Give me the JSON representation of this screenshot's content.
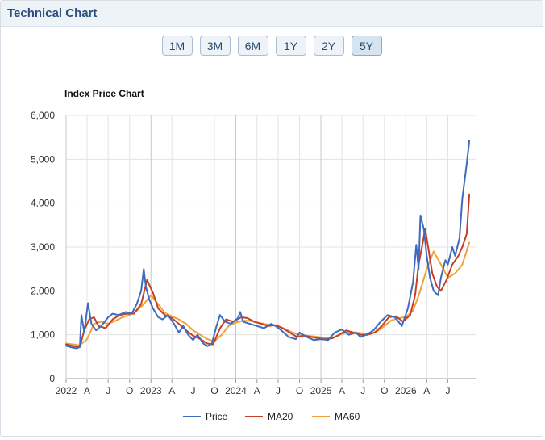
{
  "panel": {
    "title": "Technical Chart"
  },
  "range_buttons": [
    {
      "label": "1M",
      "active": false
    },
    {
      "label": "3M",
      "active": false
    },
    {
      "label": "6M",
      "active": false
    },
    {
      "label": "1Y",
      "active": false
    },
    {
      "label": "2Y",
      "active": false
    },
    {
      "label": "5Y",
      "active": true
    }
  ],
  "colors": {
    "price": "#3d6bbf",
    "ma20": "#c63f24",
    "ma60": "#f2a03a",
    "grid": "#e3e3e3",
    "grid_major": "#c8c8c8"
  },
  "chart_data": {
    "type": "line",
    "title": "Index Price Chart",
    "xlabel": "",
    "ylabel": "",
    "ylim": [
      0,
      6000
    ],
    "y_ticks": [
      {
        "value": 0,
        "label": "0"
      },
      {
        "value": 1000,
        "label": "1,000"
      },
      {
        "value": 2000,
        "label": "2,000"
      },
      {
        "value": 3000,
        "label": "3,000"
      },
      {
        "value": 4000,
        "label": "4,000"
      },
      {
        "value": 5000,
        "label": "5,000"
      },
      {
        "value": 6000,
        "label": "6,000"
      }
    ],
    "xlim": [
      "2022-01-01",
      "2026-11-01"
    ],
    "x_ticks": [
      {
        "date": "2022-01-01",
        "label": "2022",
        "major": true
      },
      {
        "date": "2022-04-01",
        "label": "A",
        "major": false
      },
      {
        "date": "2022-07-01",
        "label": "J",
        "major": false
      },
      {
        "date": "2022-10-01",
        "label": "O",
        "major": false
      },
      {
        "date": "2023-01-01",
        "label": "2023",
        "major": true
      },
      {
        "date": "2023-04-01",
        "label": "A",
        "major": false
      },
      {
        "date": "2023-07-01",
        "label": "J",
        "major": false
      },
      {
        "date": "2023-10-01",
        "label": "O",
        "major": false
      },
      {
        "date": "2024-01-01",
        "label": "2024",
        "major": true
      },
      {
        "date": "2024-04-01",
        "label": "A",
        "major": false
      },
      {
        "date": "2024-07-01",
        "label": "J",
        "major": false
      },
      {
        "date": "2024-10-01",
        "label": "O",
        "major": false
      },
      {
        "date": "2025-01-01",
        "label": "2025",
        "major": true
      },
      {
        "date": "2025-04-01",
        "label": "A",
        "major": false
      },
      {
        "date": "2025-07-01",
        "label": "J",
        "major": false
      },
      {
        "date": "2025-10-01",
        "label": "O",
        "major": false
      },
      {
        "date": "2026-01-01",
        "label": "2026",
        "major": true
      },
      {
        "date": "2026-04-01",
        "label": "A",
        "major": false
      },
      {
        "date": "2026-07-01",
        "label": "J",
        "major": false
      }
    ],
    "grid": true,
    "legend_position": "bottom",
    "series": [
      {
        "name": "Price",
        "points": [
          [
            "2022-01-01",
            750
          ],
          [
            "2022-01-25",
            710
          ],
          [
            "2022-02-15",
            690
          ],
          [
            "2022-03-01",
            720
          ],
          [
            "2022-03-08",
            1450
          ],
          [
            "2022-03-20",
            1050
          ],
          [
            "2022-04-05",
            1720
          ],
          [
            "2022-04-20",
            1250
          ],
          [
            "2022-05-10",
            1100
          ],
          [
            "2022-06-01",
            1200
          ],
          [
            "2022-07-01",
            1400
          ],
          [
            "2022-07-20",
            1480
          ],
          [
            "2022-08-15",
            1450
          ],
          [
            "2022-09-15",
            1520
          ],
          [
            "2022-10-10",
            1480
          ],
          [
            "2022-11-01",
            1700
          ],
          [
            "2022-11-20",
            2000
          ],
          [
            "2022-12-01",
            2500
          ],
          [
            "2022-12-10",
            2100
          ],
          [
            "2022-12-25",
            1800
          ],
          [
            "2023-01-10",
            1600
          ],
          [
            "2023-02-01",
            1400
          ],
          [
            "2023-02-20",
            1350
          ],
          [
            "2023-03-15",
            1450
          ],
          [
            "2023-04-10",
            1250
          ],
          [
            "2023-05-01",
            1050
          ],
          [
            "2023-05-20",
            1200
          ],
          [
            "2023-06-10",
            1000
          ],
          [
            "2023-07-01",
            880
          ],
          [
            "2023-07-20",
            1000
          ],
          [
            "2023-08-15",
            800
          ],
          [
            "2023-09-01",
            740
          ],
          [
            "2023-09-20",
            800
          ],
          [
            "2023-10-10",
            1200
          ],
          [
            "2023-10-25",
            1450
          ],
          [
            "2023-11-15",
            1300
          ],
          [
            "2023-12-10",
            1250
          ],
          [
            "2024-01-10",
            1380
          ],
          [
            "2024-01-20",
            1520
          ],
          [
            "2024-02-01",
            1300
          ],
          [
            "2024-03-01",
            1250
          ],
          [
            "2024-04-01",
            1200
          ],
          [
            "2024-05-01",
            1150
          ],
          [
            "2024-06-01",
            1250
          ],
          [
            "2024-06-20",
            1200
          ],
          [
            "2024-07-15",
            1100
          ],
          [
            "2024-08-15",
            950
          ],
          [
            "2024-09-15",
            900
          ],
          [
            "2024-10-01",
            1050
          ],
          [
            "2024-11-01",
            950
          ],
          [
            "2024-12-01",
            880
          ],
          [
            "2025-01-01",
            900
          ],
          [
            "2025-02-01",
            880
          ],
          [
            "2025-03-01",
            1050
          ],
          [
            "2025-04-01",
            1120
          ],
          [
            "2025-05-01",
            1000
          ],
          [
            "2025-06-01",
            1050
          ],
          [
            "2025-06-20",
            950
          ],
          [
            "2025-07-15",
            1000
          ],
          [
            "2025-08-15",
            1100
          ],
          [
            "2025-09-15",
            1300
          ],
          [
            "2025-10-15",
            1450
          ],
          [
            "2025-11-15",
            1400
          ],
          [
            "2025-12-15",
            1200
          ],
          [
            "2026-01-10",
            1600
          ],
          [
            "2026-02-01",
            2200
          ],
          [
            "2026-02-15",
            3050
          ],
          [
            "2026-02-25",
            2500
          ],
          [
            "2026-03-05",
            3720
          ],
          [
            "2026-03-20",
            3400
          ],
          [
            "2026-04-01",
            2800
          ],
          [
            "2026-04-15",
            2300
          ],
          [
            "2026-05-01",
            2000
          ],
          [
            "2026-05-20",
            1900
          ],
          [
            "2026-06-01",
            2300
          ],
          [
            "2026-06-20",
            2700
          ],
          [
            "2026-07-01",
            2600
          ],
          [
            "2026-07-20",
            3000
          ],
          [
            "2026-08-01",
            2800
          ],
          [
            "2026-08-20",
            3200
          ],
          [
            "2026-09-01",
            4100
          ],
          [
            "2026-09-20",
            4900
          ],
          [
            "2026-10-01",
            5420
          ]
        ]
      },
      {
        "name": "MA20",
        "points": [
          [
            "2022-01-01",
            780
          ],
          [
            "2022-02-01",
            740
          ],
          [
            "2022-03-01",
            720
          ],
          [
            "2022-03-20",
            1100
          ],
          [
            "2022-04-10",
            1350
          ],
          [
            "2022-05-01",
            1400
          ],
          [
            "2022-05-20",
            1200
          ],
          [
            "2022-06-20",
            1150
          ],
          [
            "2022-07-20",
            1350
          ],
          [
            "2022-08-20",
            1450
          ],
          [
            "2022-09-20",
            1480
          ],
          [
            "2022-10-20",
            1480
          ],
          [
            "2022-11-20",
            1700
          ],
          [
            "2022-12-15",
            2250
          ],
          [
            "2023-01-10",
            1950
          ],
          [
            "2023-02-01",
            1600
          ],
          [
            "2023-03-01",
            1450
          ],
          [
            "2023-04-01",
            1380
          ],
          [
            "2023-05-01",
            1250
          ],
          [
            "2023-06-01",
            1100
          ],
          [
            "2023-07-01",
            980
          ],
          [
            "2023-08-01",
            900
          ],
          [
            "2023-09-01",
            800
          ],
          [
            "2023-09-25",
            780
          ],
          [
            "2023-10-25",
            1150
          ],
          [
            "2023-11-20",
            1350
          ],
          [
            "2023-12-20",
            1300
          ],
          [
            "2024-01-25",
            1400
          ],
          [
            "2024-02-20",
            1380
          ],
          [
            "2024-03-20",
            1300
          ],
          [
            "2024-04-20",
            1250
          ],
          [
            "2024-05-20",
            1200
          ],
          [
            "2024-06-20",
            1220
          ],
          [
            "2024-07-20",
            1150
          ],
          [
            "2024-08-20",
            1050
          ],
          [
            "2024-09-20",
            950
          ],
          [
            "2024-10-20",
            980
          ],
          [
            "2024-11-20",
            950
          ],
          [
            "2024-12-20",
            920
          ],
          [
            "2025-01-20",
            900
          ],
          [
            "2025-02-20",
            920
          ],
          [
            "2025-03-20",
            1000
          ],
          [
            "2025-04-20",
            1100
          ],
          [
            "2025-05-20",
            1050
          ],
          [
            "2025-06-20",
            1000
          ],
          [
            "2025-07-20",
            1000
          ],
          [
            "2025-08-20",
            1050
          ],
          [
            "2025-09-20",
            1200
          ],
          [
            "2025-10-20",
            1400
          ],
          [
            "2025-11-20",
            1420
          ],
          [
            "2025-12-20",
            1300
          ],
          [
            "2026-01-20",
            1450
          ],
          [
            "2026-02-10",
            1900
          ],
          [
            "2026-02-25",
            2600
          ],
          [
            "2026-03-15",
            3100
          ],
          [
            "2026-03-25",
            3420
          ],
          [
            "2026-04-10",
            2900
          ],
          [
            "2026-04-25",
            2400
          ],
          [
            "2026-05-15",
            2100
          ],
          [
            "2026-06-01",
            2000
          ],
          [
            "2026-06-25",
            2250
          ],
          [
            "2026-07-20",
            2600
          ],
          [
            "2026-08-15",
            2800
          ],
          [
            "2026-09-01",
            3000
          ],
          [
            "2026-09-20",
            3300
          ],
          [
            "2026-10-01",
            4200
          ]
        ]
      },
      {
        "name": "MA60",
        "points": [
          [
            "2022-01-01",
            800
          ],
          [
            "2022-02-01",
            780
          ],
          [
            "2022-03-01",
            760
          ],
          [
            "2022-04-01",
            900
          ],
          [
            "2022-05-01",
            1250
          ],
          [
            "2022-06-01",
            1300
          ],
          [
            "2022-07-01",
            1250
          ],
          [
            "2022-08-01",
            1320
          ],
          [
            "2022-09-01",
            1400
          ],
          [
            "2022-10-01",
            1450
          ],
          [
            "2022-11-01",
            1550
          ],
          [
            "2022-12-01",
            1700
          ],
          [
            "2023-01-01",
            1900
          ],
          [
            "2023-02-01",
            1700
          ],
          [
            "2023-03-01",
            1500
          ],
          [
            "2023-04-01",
            1420
          ],
          [
            "2023-05-01",
            1350
          ],
          [
            "2023-06-01",
            1250
          ],
          [
            "2023-07-01",
            1100
          ],
          [
            "2023-08-01",
            1000
          ],
          [
            "2023-09-01",
            900
          ],
          [
            "2023-10-01",
            850
          ],
          [
            "2023-11-01",
            1000
          ],
          [
            "2023-12-01",
            1200
          ],
          [
            "2024-01-01",
            1280
          ],
          [
            "2024-02-01",
            1320
          ],
          [
            "2024-03-01",
            1320
          ],
          [
            "2024-04-01",
            1280
          ],
          [
            "2024-05-01",
            1250
          ],
          [
            "2024-06-01",
            1220
          ],
          [
            "2024-07-01",
            1200
          ],
          [
            "2024-08-01",
            1130
          ],
          [
            "2024-09-01",
            1050
          ],
          [
            "2024-10-01",
            1000
          ],
          [
            "2024-11-01",
            980
          ],
          [
            "2024-12-01",
            960
          ],
          [
            "2025-01-01",
            940
          ],
          [
            "2025-02-01",
            920
          ],
          [
            "2025-03-01",
            950
          ],
          [
            "2025-04-01",
            1020
          ],
          [
            "2025-05-01",
            1060
          ],
          [
            "2025-06-01",
            1050
          ],
          [
            "2025-07-01",
            1030
          ],
          [
            "2025-08-01",
            1020
          ],
          [
            "2025-09-01",
            1080
          ],
          [
            "2025-10-01",
            1200
          ],
          [
            "2025-11-01",
            1330
          ],
          [
            "2025-12-01",
            1380
          ],
          [
            "2026-01-01",
            1400
          ],
          [
            "2026-02-01",
            1550
          ],
          [
            "2026-03-01",
            1950
          ],
          [
            "2026-04-01",
            2500
          ],
          [
            "2026-05-01",
            2900
          ],
          [
            "2026-06-01",
            2600
          ],
          [
            "2026-07-01",
            2300
          ],
          [
            "2026-08-01",
            2400
          ],
          [
            "2026-09-01",
            2600
          ],
          [
            "2026-10-01",
            3100
          ]
        ]
      }
    ]
  }
}
